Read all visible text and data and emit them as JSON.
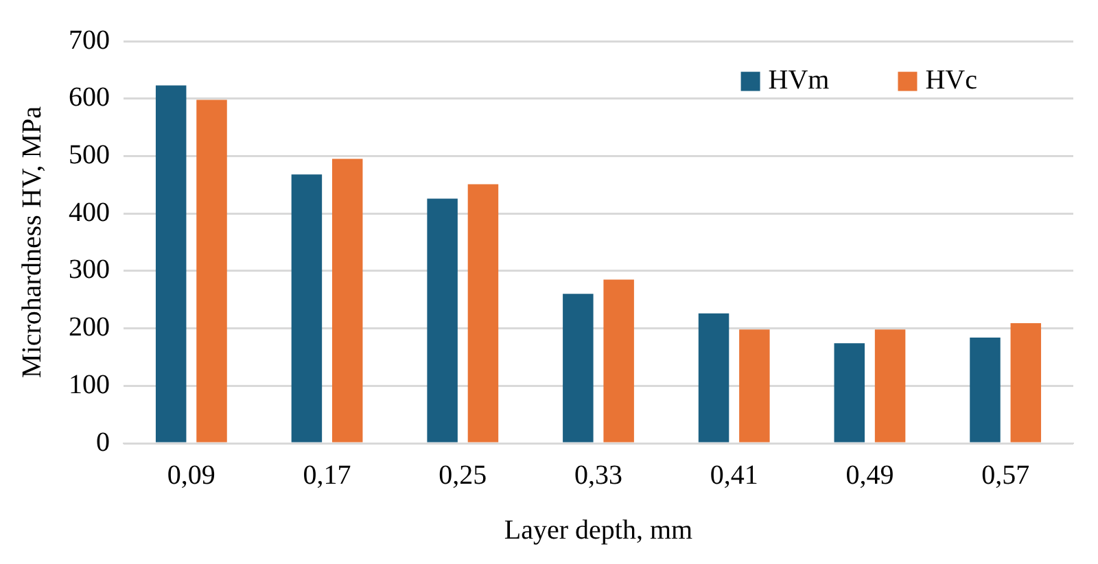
{
  "chart_data": {
    "type": "bar",
    "xlabel": "Layer depth, mm",
    "ylabel": "Microhardness HV, MPa",
    "categories": [
      "0,09",
      "0,17",
      "0,25",
      "0,33",
      "0,41",
      "0,49",
      "0,57"
    ],
    "series": [
      {
        "name": "HVm",
        "color": "#1a5f82",
        "values": [
          623,
          468,
          426,
          260,
          226,
          174,
          184
        ]
      },
      {
        "name": "HVc",
        "color": "#e97435",
        "values": [
          598,
          495,
          451,
          285,
          198,
          198,
          209
        ]
      }
    ],
    "ylim": [
      0,
      700
    ],
    "yticks": [
      0,
      100,
      200,
      300,
      400,
      500,
      600,
      700
    ],
    "grid": "y",
    "legend": "top right"
  }
}
